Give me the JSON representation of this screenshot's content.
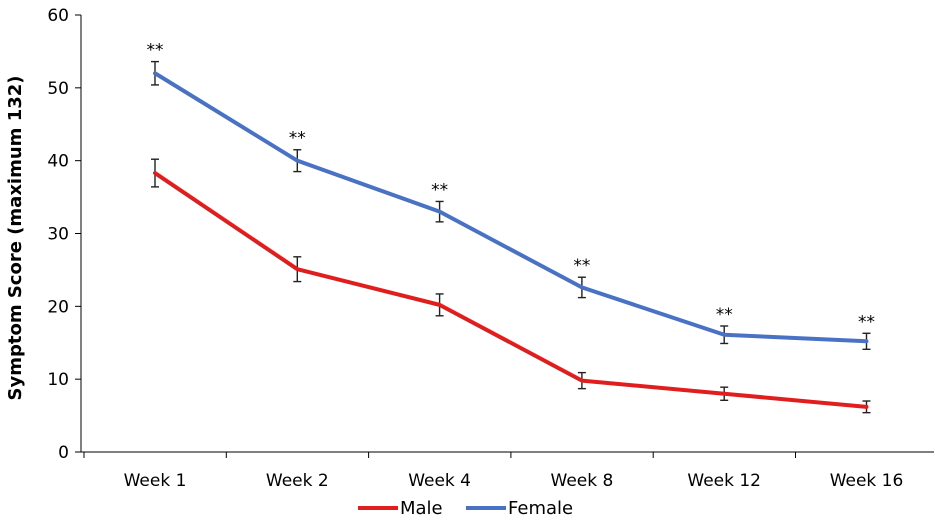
{
  "chart_data": {
    "type": "line",
    "title": "",
    "xlabel": "",
    "ylabel": "Symptom Score (maximum 132)",
    "ylim": [
      0,
      60
    ],
    "yticks": [
      0,
      10,
      20,
      30,
      40,
      50,
      60
    ],
    "categories": [
      "Week 1",
      "Week 2",
      "Week 4",
      "Week 8",
      "Week 12",
      "Week 16"
    ],
    "series": [
      {
        "name": "Male",
        "color": "#e01e1e",
        "values": [
          38.3,
          25.1,
          20.2,
          9.8,
          8.0,
          6.2
        ],
        "errors": [
          1.9,
          1.7,
          1.5,
          1.1,
          0.9,
          0.8
        ]
      },
      {
        "name": "Female",
        "color": "#4a72c4",
        "values": [
          52.0,
          40.0,
          33.0,
          22.6,
          16.1,
          15.2
        ],
        "errors": [
          1.6,
          1.5,
          1.4,
          1.4,
          1.2,
          1.1
        ]
      }
    ],
    "annotations": [
      "**",
      "**",
      "**",
      "**",
      "**",
      "**"
    ],
    "legend": [
      "Male",
      "Female"
    ],
    "legend_position": "bottom"
  }
}
